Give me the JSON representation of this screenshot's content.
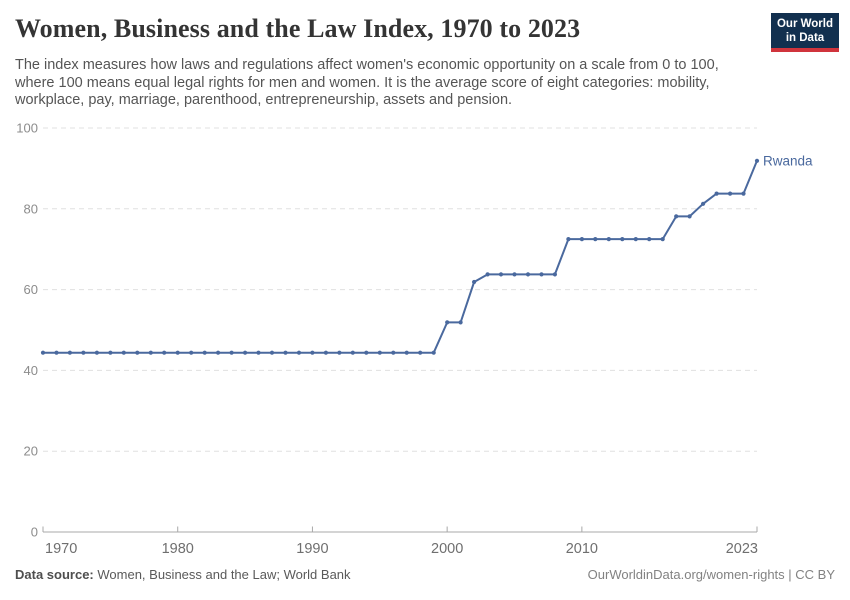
{
  "header": {
    "title": "Women, Business and the Law Index, 1970 to 2023",
    "subtitle_lines": [
      "The index measures how laws and regulations affect women's economic opportunity on a scale from 0 to 100,",
      "where 100 means equal legal rights for men and women. It is the average score of eight categories: mobility,",
      "workplace, pay, marriage, parenthood, entrepreneurship, assets and pension."
    ]
  },
  "logo": {
    "line1": "Our World",
    "line2": "in Data",
    "bg_color": "#12304f",
    "bar_color": "#d0343c"
  },
  "chart_data": {
    "type": "line",
    "title": "Women, Business and the Law Index, 1970 to 2023",
    "xlabel": "",
    "ylabel": "",
    "xlim": [
      1970,
      2023
    ],
    "ylim": [
      0,
      100
    ],
    "x_ticks": [
      1970,
      1980,
      1990,
      2000,
      2010,
      2023
    ],
    "y_ticks": [
      0,
      20,
      40,
      60,
      80,
      100
    ],
    "grid": "horizontal-dashed",
    "legend": "end-of-line-label",
    "series": [
      {
        "name": "Rwanda",
        "color": "#4a699e",
        "x": [
          1970,
          1971,
          1972,
          1973,
          1974,
          1975,
          1976,
          1977,
          1978,
          1979,
          1980,
          1981,
          1982,
          1983,
          1984,
          1985,
          1986,
          1987,
          1988,
          1989,
          1990,
          1991,
          1992,
          1993,
          1994,
          1995,
          1996,
          1997,
          1998,
          1999,
          2000,
          2001,
          2002,
          2003,
          2004,
          2005,
          2006,
          2007,
          2008,
          2009,
          2010,
          2011,
          2012,
          2013,
          2014,
          2015,
          2016,
          2017,
          2018,
          2019,
          2020,
          2021,
          2022,
          2023
        ],
        "values": [
          44.375,
          44.375,
          44.375,
          44.375,
          44.375,
          44.375,
          44.375,
          44.375,
          44.375,
          44.375,
          44.375,
          44.375,
          44.375,
          44.375,
          44.375,
          44.375,
          44.375,
          44.375,
          44.375,
          44.375,
          44.375,
          44.375,
          44.375,
          44.375,
          44.375,
          44.375,
          44.375,
          44.375,
          44.375,
          44.375,
          51.875,
          51.875,
          61.875,
          63.75,
          63.75,
          63.75,
          63.75,
          63.75,
          63.75,
          72.5,
          72.5,
          72.5,
          72.5,
          72.5,
          72.5,
          72.5,
          72.5,
          78.125,
          78.125,
          81.25,
          83.75,
          83.75,
          83.75,
          91.875
        ]
      }
    ],
    "style": {
      "gridline_color": "#e0e0e0",
      "axis_color": "#a8a8a8",
      "y_tick_label_color": "#8c8c8c",
      "x_tick_label_color": "#6f6f6f"
    }
  },
  "footer": {
    "datasource_label": "Data source:",
    "datasource_text": "Women, Business and the Law; World Bank",
    "attribution": "OurWorldinData.org/women-rights | CC BY"
  }
}
